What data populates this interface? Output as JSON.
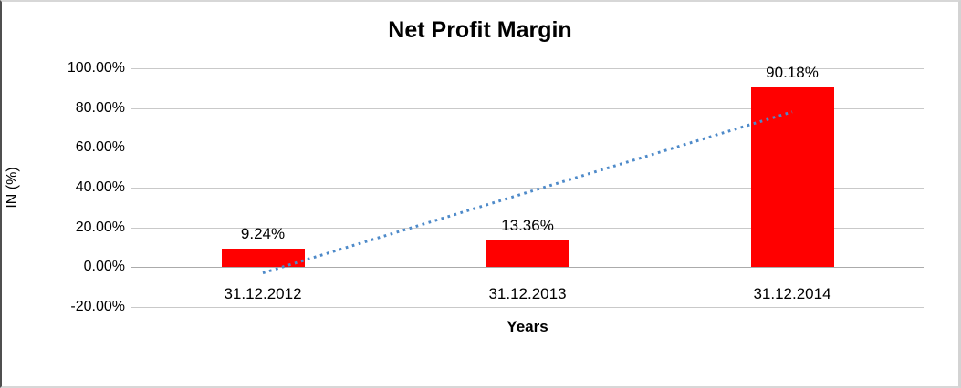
{
  "chart_data": {
    "type": "bar",
    "title": "Net Profit Margin",
    "xlabel": "Years",
    "ylabel": "IN (%)",
    "categories": [
      "31.12.2012",
      "31.12.2013",
      "31.12.2014"
    ],
    "values": [
      9.24,
      13.36,
      90.18
    ],
    "data_labels": [
      "9.24%",
      "13.36%",
      "90.18%"
    ],
    "ylim": [
      -20,
      100
    ],
    "ytick_step": 20,
    "ytick_labels": [
      "100.00%",
      "80.00%",
      "60.00%",
      "40.00%",
      "20.00%",
      "0.00%",
      "-20.00%"
    ],
    "grid": true,
    "legend": "none",
    "bar_color": "#ff0000",
    "gridline_color": "#c9c9c9",
    "zero_line_color": "#ababab",
    "trendline": {
      "type": "linear",
      "style": "dotted",
      "color": "#4e8ac9",
      "start": {
        "category_index": 0,
        "value": -2.9
      },
      "end": {
        "category_index": 2,
        "value": 78.1
      }
    }
  }
}
